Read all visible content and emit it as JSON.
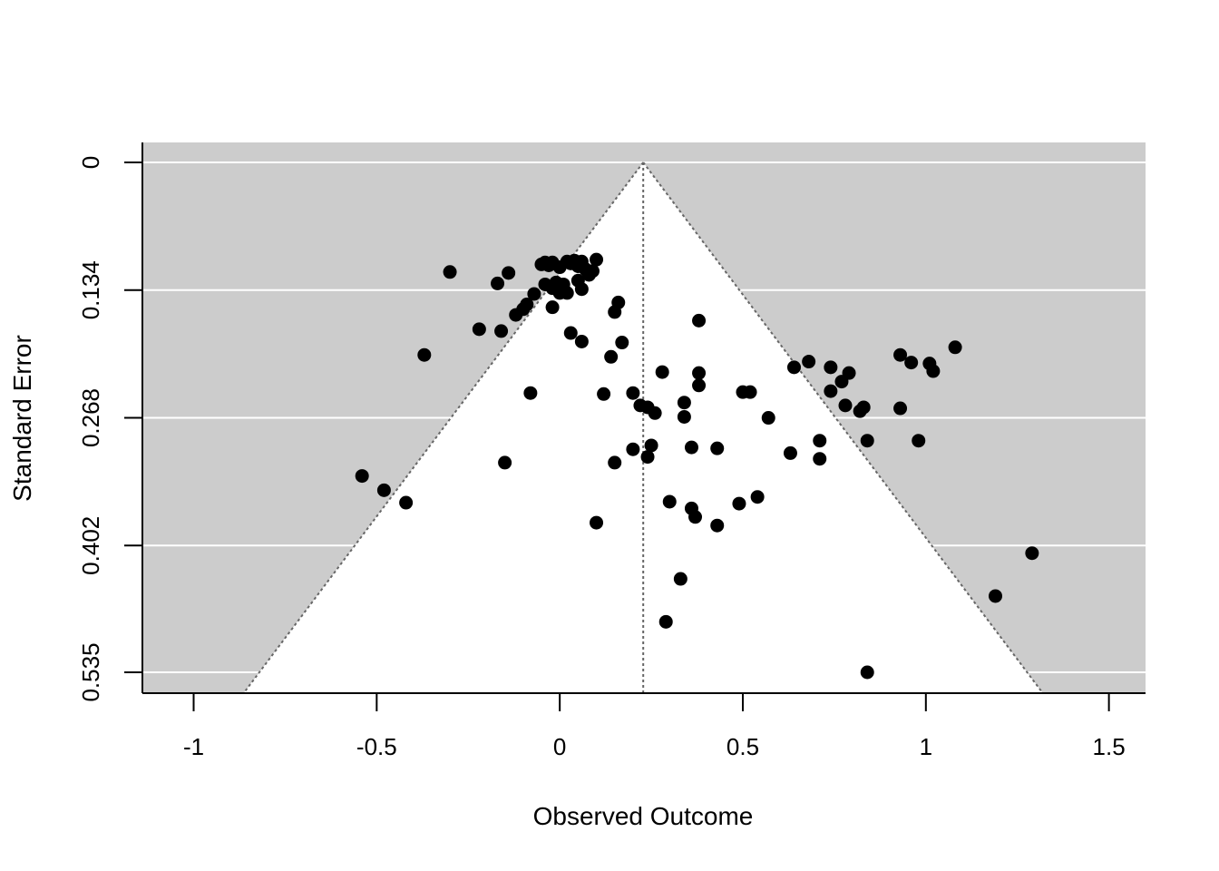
{
  "chart_data": {
    "type": "scatter",
    "subtype": "funnel-plot",
    "title": "",
    "xlabel": "Observed Outcome",
    "ylabel": "Standard Error",
    "xlim": [
      -1.14,
      1.6
    ],
    "ylim": [
      0,
      0.556
    ],
    "y_reversed": true,
    "x_ticks": [
      -1,
      -0.5,
      0,
      0.5,
      1,
      1.5
    ],
    "x_tick_labels": [
      "-1",
      "-0.5",
      "0",
      "0.5",
      "1",
      "1.5"
    ],
    "y_ticks": [
      0,
      0.134,
      0.268,
      0.402,
      0.535
    ],
    "y_tick_labels": [
      "0",
      "0.134",
      "0.268",
      "0.402",
      "0.535"
    ],
    "horizontal_gridlines": true,
    "pooled_estimate": 0.228,
    "funnel_multiplier": 1.96,
    "colors": {
      "background_region": "#cccccc",
      "funnel_region": "#ffffff",
      "gridline": "#ffffff",
      "points": "#000000",
      "funnel_lines": "#666666",
      "axis": "#000000"
    },
    "points": [
      [
        -0.3,
        0.115
      ],
      [
        -0.17,
        0.127
      ],
      [
        -0.14,
        0.116
      ],
      [
        -0.05,
        0.107
      ],
      [
        -0.04,
        0.105
      ],
      [
        -0.03,
        0.108
      ],
      [
        -0.02,
        0.105
      ],
      [
        0.0,
        0.11
      ],
      [
        0.02,
        0.104
      ],
      [
        0.03,
        0.106
      ],
      [
        0.04,
        0.103
      ],
      [
        0.05,
        0.109
      ],
      [
        0.06,
        0.104
      ],
      [
        0.07,
        0.112
      ],
      [
        0.08,
        0.118
      ],
      [
        0.09,
        0.114
      ],
      [
        0.1,
        0.102
      ],
      [
        0.01,
        0.128
      ],
      [
        -0.02,
        0.132
      ],
      [
        0.0,
        0.137
      ],
      [
        0.02,
        0.137
      ],
      [
        -0.04,
        0.128
      ],
      [
        -0.01,
        0.126
      ],
      [
        0.06,
        0.133
      ],
      [
        0.05,
        0.124
      ],
      [
        -0.07,
        0.138
      ],
      [
        -0.09,
        0.149
      ],
      [
        -0.1,
        0.154
      ],
      [
        -0.12,
        0.16
      ],
      [
        -0.02,
        0.152
      ],
      [
        -0.22,
        0.175
      ],
      [
        -0.16,
        0.177
      ],
      [
        -0.37,
        0.202
      ],
      [
        0.03,
        0.179
      ],
      [
        0.06,
        0.188
      ],
      [
        0.16,
        0.147
      ],
      [
        0.15,
        0.157
      ],
      [
        0.17,
        0.189
      ],
      [
        0.14,
        0.204
      ],
      [
        0.38,
        0.166
      ],
      [
        -0.08,
        0.242
      ],
      [
        0.12,
        0.243
      ],
      [
        0.2,
        0.242
      ],
      [
        0.22,
        0.255
      ],
      [
        0.24,
        0.257
      ],
      [
        0.26,
        0.263
      ],
      [
        0.28,
        0.22
      ],
      [
        0.38,
        0.221
      ],
      [
        0.38,
        0.234
      ],
      [
        0.34,
        0.252
      ],
      [
        0.34,
        0.267
      ],
      [
        0.5,
        0.241
      ],
      [
        0.52,
        0.241
      ],
      [
        0.57,
        0.268
      ],
      [
        0.2,
        0.301
      ],
      [
        0.25,
        0.297
      ],
      [
        0.24,
        0.309
      ],
      [
        0.15,
        0.315
      ],
      [
        -0.15,
        0.315
      ],
      [
        0.36,
        0.299
      ],
      [
        0.43,
        0.3
      ],
      [
        0.3,
        0.356
      ],
      [
        0.36,
        0.363
      ],
      [
        0.37,
        0.372
      ],
      [
        0.49,
        0.358
      ],
      [
        0.54,
        0.351
      ],
      [
        0.43,
        0.381
      ],
      [
        0.1,
        0.378
      ],
      [
        0.33,
        0.437
      ],
      [
        0.29,
        0.482
      ],
      [
        0.84,
        0.535
      ],
      [
        -0.54,
        0.329
      ],
      [
        -0.48,
        0.344
      ],
      [
        -0.42,
        0.357
      ],
      [
        0.64,
        0.215
      ],
      [
        0.68,
        0.209
      ],
      [
        0.74,
        0.215
      ],
      [
        0.77,
        0.23
      ],
      [
        0.79,
        0.221
      ],
      [
        0.74,
        0.24
      ],
      [
        0.78,
        0.255
      ],
      [
        0.82,
        0.261
      ],
      [
        0.83,
        0.257
      ],
      [
        0.84,
        0.292
      ],
      [
        0.63,
        0.305
      ],
      [
        0.71,
        0.292
      ],
      [
        0.71,
        0.311
      ],
      [
        0.93,
        0.202
      ],
      [
        0.96,
        0.21
      ],
      [
        1.01,
        0.211
      ],
      [
        1.02,
        0.219
      ],
      [
        1.08,
        0.194
      ],
      [
        0.93,
        0.258
      ],
      [
        0.98,
        0.292
      ],
      [
        1.29,
        0.41
      ],
      [
        1.19,
        0.455
      ]
    ]
  }
}
